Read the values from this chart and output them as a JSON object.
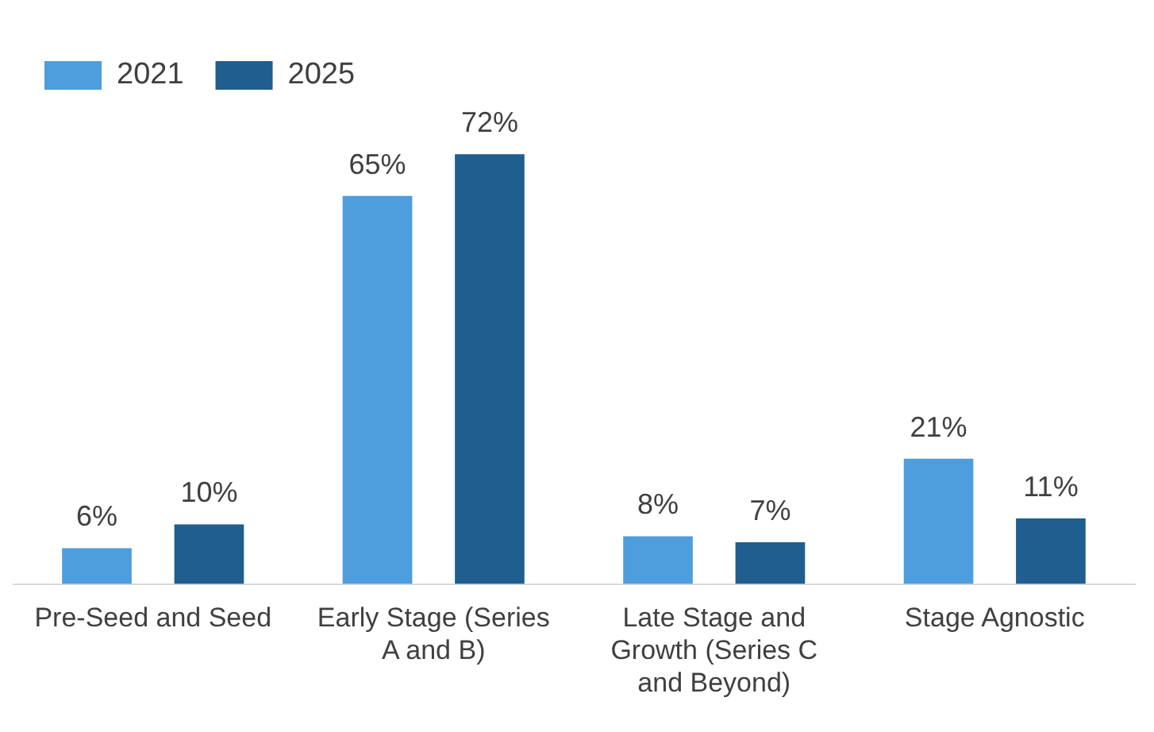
{
  "chart_data": {
    "type": "bar",
    "categories": [
      "Pre-Seed and Seed",
      "Early Stage (Series A and B)",
      "Late Stage and Growth (Series C and Beyond)",
      "Stage Agnostic"
    ],
    "series": [
      {
        "name": "2021",
        "color": "#4e9ddc",
        "values": [
          6,
          65,
          8,
          21
        ],
        "value_labels": [
          "6%",
          "65%",
          "8%",
          "21%"
        ]
      },
      {
        "name": "2025",
        "color": "#1f5e8f",
        "values": [
          10,
          72,
          7,
          11
        ],
        "value_labels": [
          "10%",
          "72%",
          "7%",
          "11%"
        ]
      }
    ],
    "legend": "top left",
    "grid": false
  }
}
